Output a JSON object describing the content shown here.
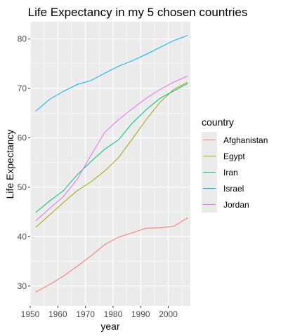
{
  "chart_data": {
    "type": "line",
    "title": "Life Expectancy in my 5 chosen countries",
    "xlabel": "year",
    "ylabel": "Life Expectancy",
    "xlim": [
      1950,
      2008
    ],
    "ylim": [
      26,
      83.5
    ],
    "x_ticks": [
      1950,
      1960,
      1970,
      1980,
      1990,
      2000
    ],
    "y_ticks": [
      30,
      40,
      50,
      60,
      70,
      80
    ],
    "grid": true,
    "legend_title": "country",
    "legend_position": "right",
    "x": [
      1952,
      1957,
      1962,
      1967,
      1972,
      1977,
      1982,
      1987,
      1992,
      1997,
      2002,
      2007
    ],
    "series": [
      {
        "name": "Afghanistan",
        "color": "#F8766D",
        "values": [
          28.8,
          30.3,
          32.0,
          34.0,
          36.1,
          38.4,
          39.9,
          40.8,
          41.7,
          41.8,
          42.1,
          43.8
        ]
      },
      {
        "name": "Egypt",
        "color": "#A3A500",
        "values": [
          41.9,
          44.4,
          46.9,
          49.3,
          51.1,
          53.3,
          56.0,
          59.8,
          63.7,
          67.2,
          69.8,
          71.3
        ]
      },
      {
        "name": "Iran",
        "color": "#00BF7D",
        "values": [
          44.9,
          47.2,
          49.3,
          52.5,
          55.2,
          57.7,
          59.6,
          63.0,
          65.7,
          68.0,
          69.5,
          71.0
        ]
      },
      {
        "name": "Israel",
        "color": "#00B0F6",
        "values": [
          65.4,
          67.8,
          69.4,
          70.8,
          71.6,
          73.1,
          74.5,
          75.6,
          76.9,
          78.3,
          79.7,
          80.7
        ]
      },
      {
        "name": "Jordan",
        "color": "#E76BF3",
        "values": [
          43.2,
          45.7,
          48.1,
          51.6,
          56.5,
          61.1,
          63.7,
          65.9,
          68.0,
          69.8,
          71.3,
          72.5
        ]
      }
    ]
  }
}
